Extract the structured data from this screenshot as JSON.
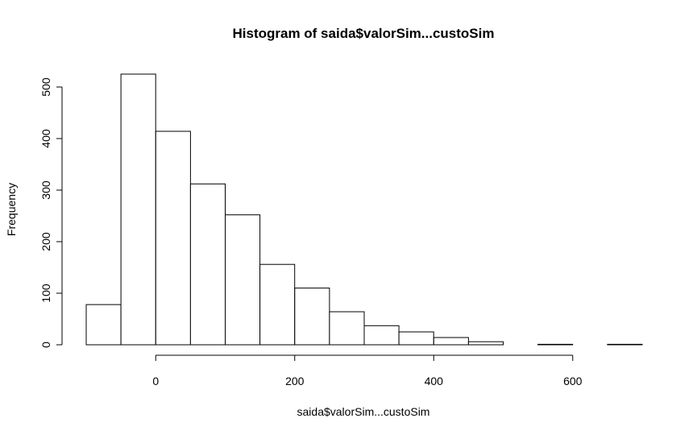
{
  "chart_data": {
    "type": "bar",
    "title": "Histogram of saida$valorSim...custoSim",
    "xlabel": "saida$valorSim...custoSim",
    "ylabel": "Frequency",
    "bin_edges": [
      -100,
      -50,
      0,
      50,
      100,
      150,
      200,
      250,
      300,
      350,
      400,
      450,
      500,
      550,
      600,
      650,
      700
    ],
    "values": [
      78,
      525,
      414,
      312,
      252,
      156,
      110,
      64,
      37,
      25,
      14,
      6,
      0,
      1,
      0,
      1
    ],
    "xlim": [
      -100,
      700
    ],
    "ylim": [
      0,
      525
    ],
    "x_ticks": [
      0,
      200,
      400,
      600
    ],
    "y_ticks": [
      0,
      100,
      200,
      300,
      400,
      500
    ],
    "grid": false,
    "legend": "none",
    "bar_fill": "#ffffff",
    "bar_stroke": "#000000"
  }
}
